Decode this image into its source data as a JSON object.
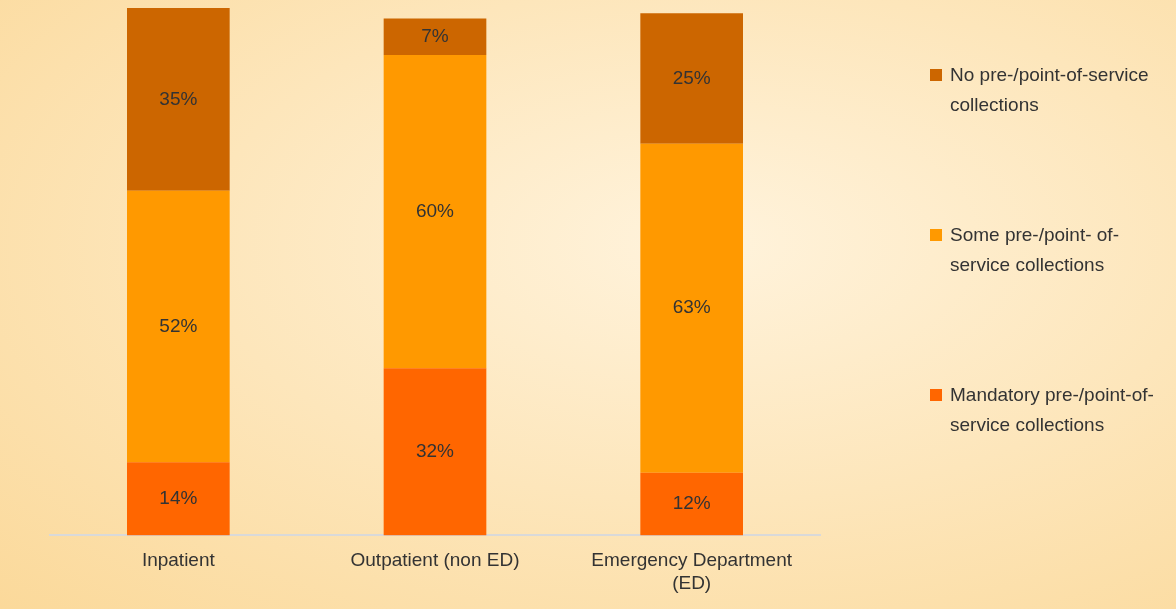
{
  "chart_data": {
    "type": "bar",
    "stacked": true,
    "legend": "right",
    "grid": false,
    "categories": [
      "Inpatient",
      "Outpatient (non ED)",
      "Emergency Department (ED)"
    ],
    "series": [
      {
        "name": "Mandatory pre-/point-of-service collections",
        "color": "#ff6600",
        "values": [
          14,
          32,
          12
        ],
        "value_labels": [
          "14%",
          "32%",
          "12%"
        ]
      },
      {
        "name": "Some pre-/point- of-service collections",
        "color": "#ff9900",
        "values": [
          52,
          60,
          63
        ],
        "value_labels": [
          "52%",
          "60%",
          "63%"
        ]
      },
      {
        "name": "No pre-/point-of-service collections",
        "color": "#cc6600",
        "values": [
          35,
          7,
          25
        ],
        "value_labels": [
          "35%",
          "7%",
          "25%"
        ]
      }
    ]
  }
}
